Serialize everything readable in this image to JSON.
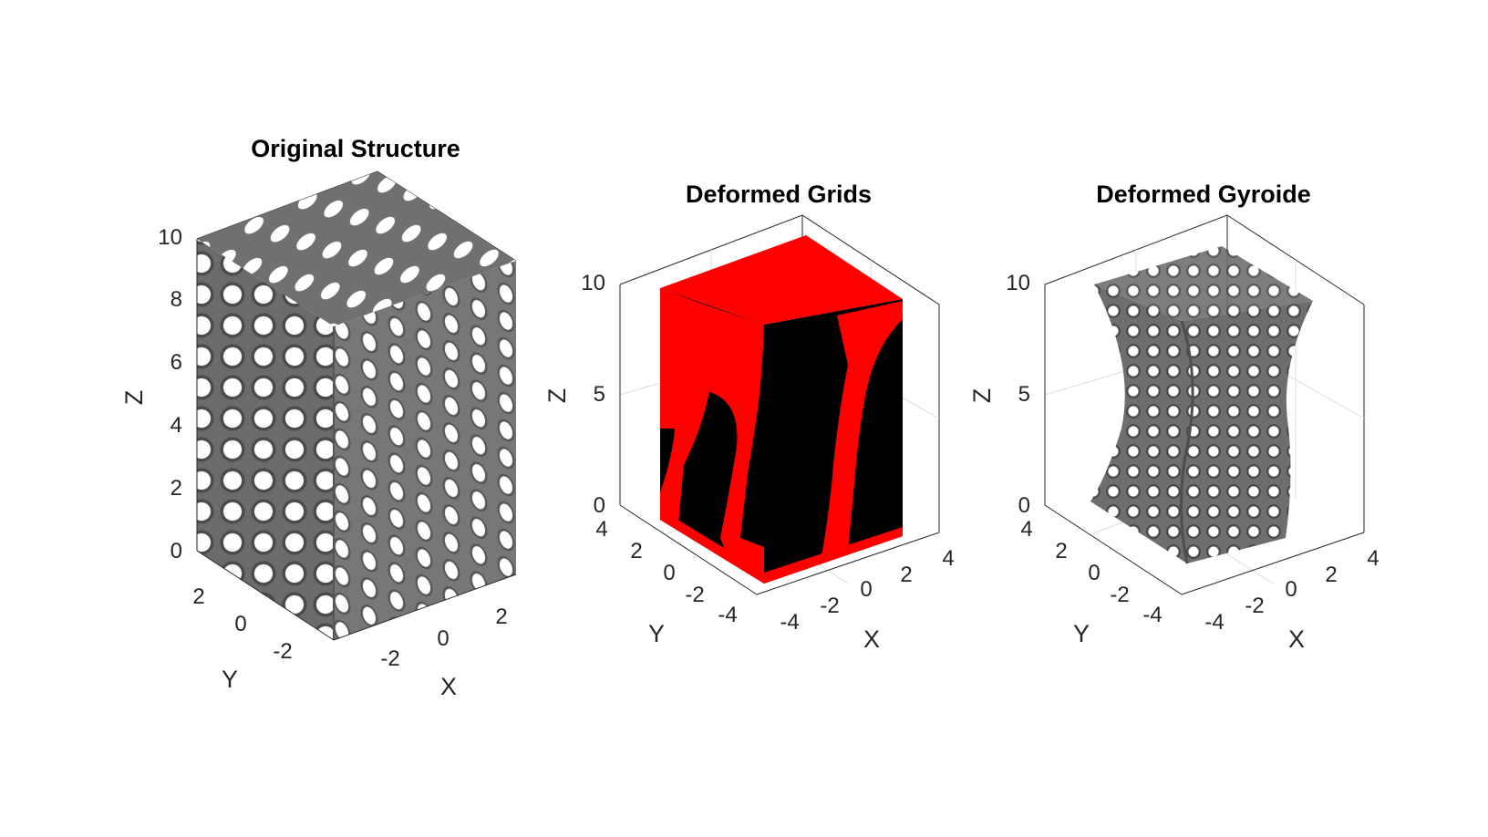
{
  "figure": {
    "background": "#ffffff",
    "surface_color": "#6b6b6b",
    "hole_color": "#ffffff",
    "grid_outer_color": "#ff0000",
    "grid_inner_color": "#000000"
  },
  "chart_data": [
    {
      "type": "3d-surface",
      "title": "Original Structure",
      "xlabel": "X",
      "ylabel": "Y",
      "zlabel": "Z",
      "xlim": [
        -3,
        3
      ],
      "ylim": [
        -3,
        3
      ],
      "zlim": [
        0,
        10
      ],
      "x_ticks": [
        "-2",
        "0",
        "2"
      ],
      "y_ticks": [
        "-2",
        "0",
        "2"
      ],
      "z_ticks": [
        "0",
        "2",
        "4",
        "6",
        "8",
        "10"
      ],
      "grid": false
    },
    {
      "type": "3d-scatter",
      "title": "Deformed Grids",
      "xlabel": "X",
      "ylabel": "Y",
      "zlabel": "Z",
      "xlim": [
        -5,
        5
      ],
      "ylim": [
        -5,
        5
      ],
      "zlim": [
        0,
        11
      ],
      "x_ticks": [
        "-4",
        "-2",
        "0",
        "2",
        "4"
      ],
      "y_ticks": [
        "-4",
        "-2",
        "0",
        "2",
        "4"
      ],
      "z_ticks": [
        "0",
        "5",
        "10"
      ],
      "grid": true
    },
    {
      "type": "3d-surface",
      "title": "Deformed Gyroide",
      "xlabel": "X",
      "ylabel": "Y",
      "zlabel": "Z",
      "xlim": [
        -5,
        5
      ],
      "ylim": [
        -5,
        5
      ],
      "zlim": [
        0,
        11
      ],
      "x_ticks": [
        "-4",
        "-2",
        "0",
        "2",
        "4"
      ],
      "y_ticks": [
        "-4",
        "-2",
        "0",
        "2",
        "4"
      ],
      "z_ticks": [
        "0",
        "5",
        "10"
      ],
      "grid": true
    }
  ]
}
